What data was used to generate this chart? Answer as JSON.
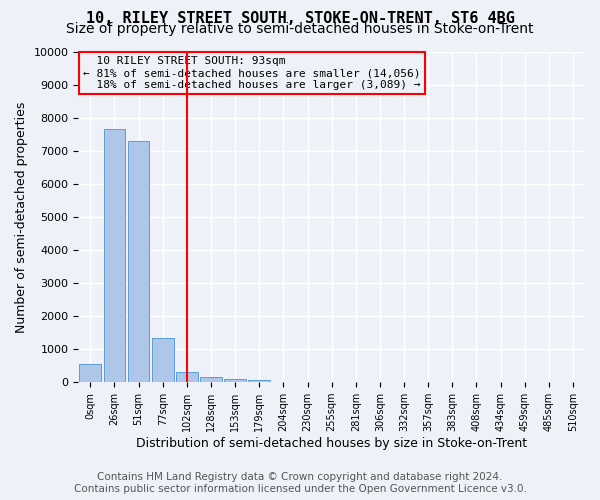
{
  "title": "10, RILEY STREET SOUTH, STOKE-ON-TRENT, ST6 4BG",
  "subtitle": "Size of property relative to semi-detached houses in Stoke-on-Trent",
  "xlabel": "Distribution of semi-detached houses by size in Stoke-on-Trent",
  "ylabel": "Number of semi-detached properties",
  "bin_labels": [
    "0sqm",
    "26sqm",
    "51sqm",
    "77sqm",
    "102sqm",
    "128sqm",
    "153sqm",
    "179sqm",
    "204sqm",
    "230sqm",
    "255sqm",
    "281sqm",
    "306sqm",
    "332sqm",
    "357sqm",
    "383sqm",
    "408sqm",
    "434sqm",
    "459sqm",
    "485sqm",
    "510sqm"
  ],
  "bar_values": [
    550,
    7650,
    7300,
    1350,
    310,
    150,
    90,
    70,
    0,
    0,
    0,
    0,
    0,
    0,
    0,
    0,
    0,
    0,
    0,
    0,
    0
  ],
  "bar_color": "#aec6e8",
  "bar_edge_color": "#5a9fd4",
  "property_label": "10 RILEY STREET SOUTH: 93sqm",
  "pct_smaller": 81,
  "count_smaller": 14056,
  "pct_larger": 18,
  "count_larger": 3089,
  "vline_bin_index": 4,
  "vline_color": "red",
  "annotation_box_color": "red",
  "ylim": [
    0,
    10000
  ],
  "yticks": [
    0,
    1000,
    2000,
    3000,
    4000,
    5000,
    6000,
    7000,
    8000,
    9000,
    10000
  ],
  "footer_line1": "Contains HM Land Registry data © Crown copyright and database right 2024.",
  "footer_line2": "Contains public sector information licensed under the Open Government Licence v3.0.",
  "bg_color": "#eef2f8",
  "grid_color": "#ffffff",
  "title_fontsize": 11,
  "subtitle_fontsize": 10,
  "axis_label_fontsize": 9,
  "tick_fontsize": 8,
  "footer_fontsize": 7.5
}
